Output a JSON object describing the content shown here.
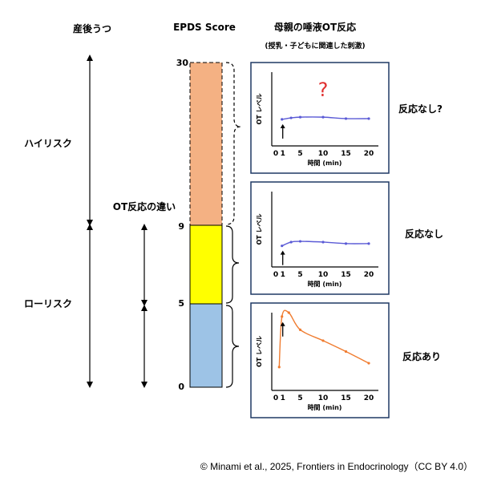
{
  "headers": {
    "postpartum_depression": "産後うつ",
    "epds_score": "EPDS Score",
    "ot_response_title": "母親の唾液OT反応",
    "ot_response_subtitle": "(授乳・子どもに関連した刺激)"
  },
  "risk_labels": {
    "high": "ハイリスク",
    "low": "ローリスク"
  },
  "ot_difference_label": "OT反応の違い",
  "epds_scale": {
    "ticks": [
      "30",
      "9",
      "5",
      "0"
    ],
    "segments": [
      {
        "name": "high",
        "range": [
          9,
          30
        ],
        "color": "#F4B183"
      },
      {
        "name": "middle",
        "range": [
          5,
          9
        ],
        "color": "#FFFF00"
      },
      {
        "name": "low",
        "range": [
          0,
          5
        ],
        "color": "#9DC3E6"
      }
    ]
  },
  "panels": [
    {
      "y_label": "OT レベル",
      "x_label": "時間 (min)",
      "x_ticks": [
        "0",
        "1",
        "5",
        "10",
        "15",
        "20"
      ],
      "line_color": "#5B5BD6",
      "question_mark": "?",
      "result": "反応なし?",
      "chart_data": {
        "type": "line",
        "x": [
          1,
          3,
          5,
          10,
          15,
          20
        ],
        "y": [
          0.36,
          0.38,
          0.39,
          0.39,
          0.37,
          0.37
        ]
      }
    },
    {
      "y_label": "OT レベル",
      "x_label": "時間 (min)",
      "x_ticks": [
        "0",
        "1",
        "5",
        "10",
        "15",
        "20"
      ],
      "line_color": "#5B5BD6",
      "result": "反応なし",
      "chart_data": {
        "type": "line",
        "x": [
          1,
          3,
          5,
          10,
          15,
          20
        ],
        "y": [
          0.28,
          0.33,
          0.34,
          0.33,
          0.31,
          0.31
        ]
      }
    },
    {
      "y_label": "OT レベル",
      "x_label": "時間 (min)",
      "x_ticks": [
        "0",
        "1",
        "5",
        "10",
        "15",
        "20"
      ],
      "line_color": "#F07C30",
      "result": "反応あり",
      "chart_data": {
        "type": "line",
        "x": [
          0.4,
          1,
          2.5,
          5,
          10,
          15,
          20
        ],
        "y": [
          0.3,
          0.95,
          1.0,
          0.78,
          0.64,
          0.5,
          0.35
        ]
      }
    }
  ],
  "copyright": "© Minami et al., 2025, Frontiers in Endocrinology（CC BY 4.0）"
}
